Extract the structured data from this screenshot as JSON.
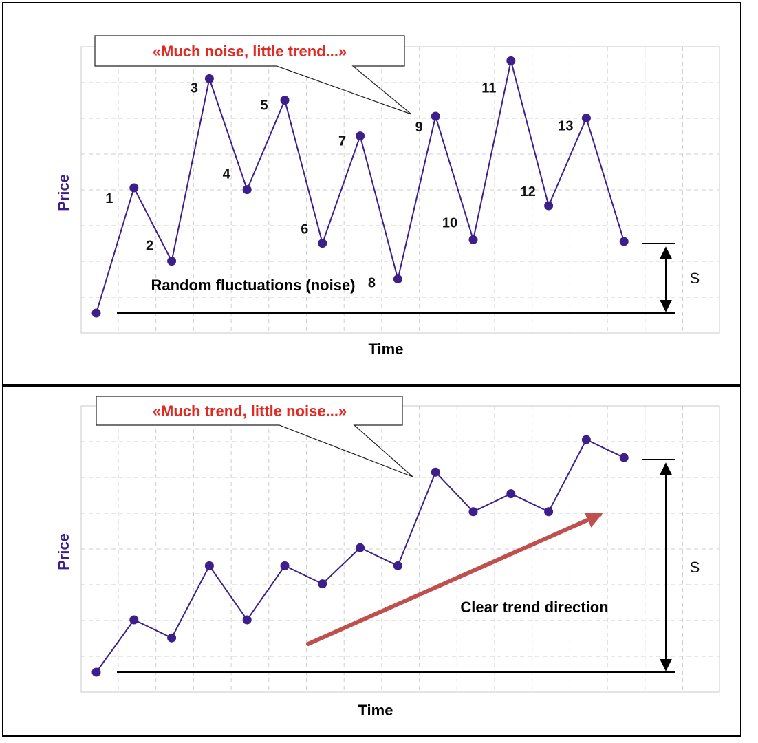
{
  "colors": {
    "series": "#3d1f8c",
    "callout_text": "#e02a22",
    "trend_arrow": "#c0504d",
    "price_label": "#3d1f8c"
  },
  "chart_data": [
    {
      "type": "line",
      "title": "",
      "xlabel": "Time",
      "ylabel": "Price",
      "grid": true,
      "callout": "«Much noise, little trend...»",
      "annotation": "Random fluctuations (noise)",
      "range_label": "S",
      "x": [
        0,
        1,
        2,
        3,
        4,
        5,
        6,
        7,
        8,
        9,
        10,
        11,
        12,
        13,
        14
      ],
      "point_labels": [
        "",
        "1",
        "2",
        "3",
        "4",
        "5",
        "6",
        "7",
        "8",
        "9",
        "10",
        "11",
        "12",
        "13",
        ""
      ],
      "series": [
        {
          "values": [
            0.0,
            7.0,
            2.9,
            13.1,
            6.9,
            11.9,
            3.9,
            9.9,
            1.9,
            11.0,
            4.1,
            14.1,
            6.0,
            10.9,
            4.0
          ]
        }
      ],
      "ylim": [
        -1,
        16
      ]
    },
    {
      "type": "line",
      "title": "",
      "xlabel": "Time",
      "ylabel": "Price",
      "grid": true,
      "callout": "«Much trend, little noise...»",
      "annotation": "Clear trend direction",
      "range_label": "S",
      "x": [
        0,
        1,
        2,
        3,
        4,
        5,
        6,
        7,
        8,
        9,
        10,
        11,
        12,
        13,
        14
      ],
      "series": [
        {
          "values": [
            0.0,
            2.9,
            1.9,
            5.9,
            2.9,
            5.9,
            4.9,
            6.9,
            5.9,
            11.1,
            8.9,
            9.9,
            8.9,
            12.9,
            11.9
          ]
        }
      ],
      "ylim": [
        -1,
        15
      ]
    }
  ]
}
